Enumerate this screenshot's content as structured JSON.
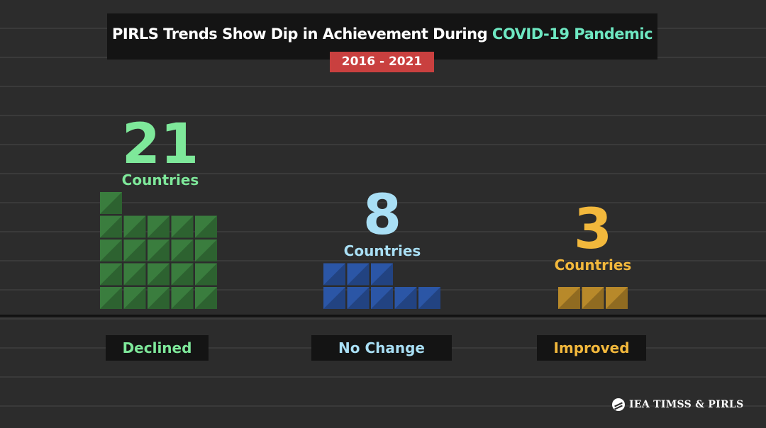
{
  "title": {
    "prefix": "PIRLS Trends Show Dip in Achievement During ",
    "highlight": "COVID-19 Pandemic",
    "highlight_color": "#6ee8c2"
  },
  "period": "2016 - 2021",
  "period_color": "#c9403f",
  "chart_data": {
    "type": "bar",
    "categories": [
      "Declined",
      "No Change",
      "Improved"
    ],
    "values": [
      21,
      8,
      3
    ],
    "unit": "Countries",
    "colors": [
      "#7ee89a",
      "#a9dff5",
      "#f2b83c"
    ],
    "block_colors": [
      "#3a7d3e",
      "#2b56a6",
      "#b8892a"
    ]
  },
  "logo": {
    "text": "IEA TIMSS & PIRLS",
    "icon": "iea-logo-icon"
  }
}
